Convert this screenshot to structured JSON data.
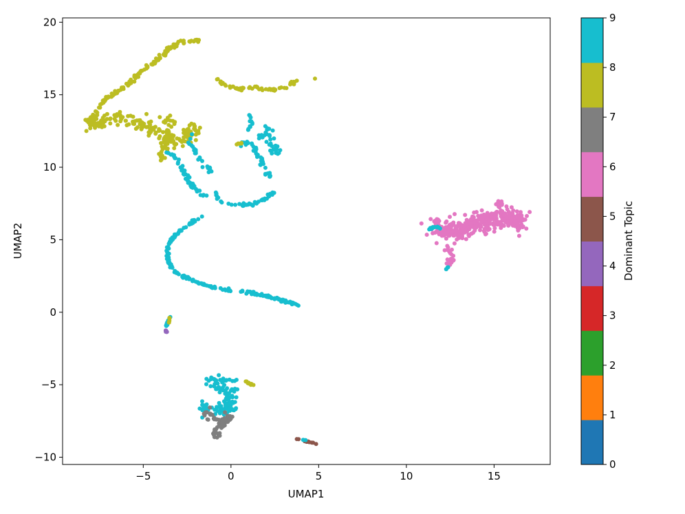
{
  "chart_data": {
    "type": "scatter",
    "xlabel": "UMAP1",
    "ylabel": "UMAP2",
    "xlim": [
      -9.6,
      18.2
    ],
    "ylim": [
      -10.5,
      20.3
    ],
    "xticks": [
      -5,
      0,
      5,
      10,
      15
    ],
    "yticks": [
      -10,
      -5,
      0,
      5,
      10,
      15,
      20
    ],
    "grid": false,
    "legend": "none",
    "colorbar": {
      "label": "Dominant Topic",
      "min": 0,
      "max": 9,
      "ticks": [
        0,
        1,
        2,
        3,
        4,
        5,
        6,
        7,
        8,
        9
      ],
      "colors": [
        "#1f77b4",
        "#ff7f0e",
        "#2ca02c",
        "#d62728",
        "#9467bd",
        "#8c564b",
        "#e377c2",
        "#7f7f7f",
        "#bcbd22",
        "#17becf"
      ]
    },
    "clusters": [
      {
        "topic": 8,
        "path": [
          [
            -8.3,
            13.1
          ],
          [
            -7.8,
            13.6
          ],
          [
            -7.3,
            14.6
          ],
          [
            -6.6,
            15.1
          ],
          [
            -5.9,
            15.7
          ],
          [
            -5.2,
            16.5
          ],
          [
            -4.4,
            17.2
          ],
          [
            -3.6,
            18.1
          ],
          [
            -2.9,
            18.6
          ],
          [
            -2.2,
            18.75
          ],
          [
            -1.8,
            18.7
          ]
        ],
        "spread": 0.12,
        "n": 130
      },
      {
        "topic": 8,
        "path": [
          [
            -8.0,
            13.0
          ],
          [
            -7.3,
            13.4
          ],
          [
            -6.4,
            13.4
          ],
          [
            -5.4,
            13.1
          ],
          [
            -4.6,
            12.8
          ],
          [
            -3.9,
            12.2
          ],
          [
            -3.2,
            11.7
          ],
          [
            -2.6,
            11.9
          ],
          [
            -2.2,
            12.6
          ],
          [
            -1.8,
            12.7
          ]
        ],
        "spread": 0.35,
        "n": 170
      },
      {
        "topic": 8,
        "path": [
          [
            -4.1,
            10.6
          ],
          [
            -3.8,
            11.2
          ],
          [
            -3.6,
            12.2
          ],
          [
            -3.5,
            12.8
          ],
          [
            -3.9,
            13.3
          ]
        ],
        "spread": 0.3,
        "n": 50
      },
      {
        "topic": 8,
        "path": [
          [
            -8.1,
            13.2
          ],
          [
            -7.6,
            12.9
          ],
          [
            -7.1,
            13.2
          ]
        ],
        "spread": 0.2,
        "n": 20
      },
      {
        "topic": 9,
        "path": [
          [
            -3.6,
            11.0
          ],
          [
            -3.0,
            10.5
          ],
          [
            -2.7,
            9.6
          ],
          [
            -2.1,
            8.6
          ],
          [
            -1.5,
            8.0
          ]
        ],
        "spread": 0.12,
        "n": 50
      },
      {
        "topic": 9,
        "path": [
          [
            -2.1,
            12.2
          ],
          [
            -2.4,
            11.6
          ],
          [
            -1.9,
            10.8
          ],
          [
            -1.6,
            10.2
          ],
          [
            -1.1,
            9.7
          ]
        ],
        "spread": 0.12,
        "n": 30
      },
      {
        "topic": 9,
        "path": [
          [
            -0.9,
            8.3
          ],
          [
            -0.6,
            7.6
          ],
          [
            0.3,
            7.4
          ],
          [
            1.1,
            7.4
          ],
          [
            1.9,
            7.8
          ],
          [
            2.4,
            8.3
          ]
        ],
        "spread": 0.1,
        "n": 45
      },
      {
        "topic": 9,
        "path": [
          [
            0.5,
            11.5
          ],
          [
            1.0,
            11.8
          ],
          [
            1.4,
            11.3
          ],
          [
            1.6,
            10.7
          ],
          [
            1.8,
            10.2
          ],
          [
            2.1,
            9.8
          ],
          [
            2.2,
            9.2
          ]
        ],
        "spread": 0.15,
        "n": 40
      },
      {
        "topic": 9,
        "path": [
          [
            1.6,
            12.0
          ],
          [
            2.1,
            12.6
          ],
          [
            2.3,
            11.6
          ],
          [
            2.5,
            11.0
          ],
          [
            2.6,
            11.5
          ]
        ],
        "spread": 0.2,
        "n": 35
      },
      {
        "topic": 9,
        "path": [
          [
            1.0,
            13.7
          ],
          [
            1.2,
            13.0
          ],
          [
            1.0,
            12.3
          ]
        ],
        "spread": 0.08,
        "n": 12
      },
      {
        "topic": 9,
        "path": [
          [
            -1.6,
            6.6
          ],
          [
            -2.1,
            6.3
          ],
          [
            -2.6,
            5.9
          ],
          [
            -3.2,
            5.3
          ],
          [
            -3.6,
            4.6
          ],
          [
            -3.6,
            3.6
          ],
          [
            -3.4,
            3.0
          ],
          [
            -2.8,
            2.5
          ],
          [
            -2.0,
            2.1
          ],
          [
            -1.0,
            1.7
          ],
          [
            0.0,
            1.5
          ],
          [
            1.0,
            1.4
          ],
          [
            2.0,
            1.1
          ],
          [
            3.0,
            0.8
          ],
          [
            3.8,
            0.5
          ]
        ],
        "spread": 0.08,
        "n": 190
      },
      {
        "topic": 8,
        "path": [
          [
            -0.8,
            16.1
          ],
          [
            -0.4,
            15.7
          ],
          [
            0.2,
            15.4
          ],
          [
            1.2,
            15.5
          ],
          [
            2.2,
            15.3
          ],
          [
            3.0,
            15.5
          ],
          [
            3.8,
            16.0
          ]
        ],
        "spread": 0.1,
        "n": 60
      },
      {
        "topic": 8,
        "path": [
          [
            4.8,
            16.1
          ]
        ],
        "spread": 0.05,
        "n": 1
      },
      {
        "topic": 8,
        "path": [
          [
            0.3,
            11.6
          ],
          [
            0.7,
            11.7
          ]
        ],
        "spread": 0.05,
        "n": 5
      },
      {
        "topic": 6,
        "path": [
          [
            11.8,
            5.9
          ],
          [
            12.6,
            5.5
          ],
          [
            13.4,
            5.8
          ],
          [
            14.2,
            6.2
          ],
          [
            15.0,
            6.5
          ],
          [
            15.8,
            6.6
          ],
          [
            16.5,
            6.0
          ]
        ],
        "spread": 0.55,
        "n": 380
      },
      {
        "topic": 6,
        "path": [
          [
            12.3,
            4.6
          ],
          [
            12.6,
            3.9
          ],
          [
            12.4,
            3.2
          ]
        ],
        "spread": 0.15,
        "n": 25
      },
      {
        "topic": 6,
        "path": [
          [
            15.3,
            7.6
          ],
          [
            15.6,
            7.3
          ]
        ],
        "spread": 0.1,
        "n": 10
      },
      {
        "topic": 9,
        "path": [
          [
            11.3,
            5.7
          ],
          [
            11.6,
            5.9
          ],
          [
            11.9,
            5.8
          ]
        ],
        "spread": 0.08,
        "n": 12
      },
      {
        "topic": 9,
        "path": [
          [
            12.2,
            2.9
          ],
          [
            12.4,
            3.1
          ]
        ],
        "spread": 0.05,
        "n": 4
      },
      {
        "topic": 9,
        "path": [
          [
            -3.45,
            -0.2
          ],
          [
            -3.6,
            -0.6
          ],
          [
            -3.7,
            -1.0
          ]
        ],
        "spread": 0.04,
        "n": 12
      },
      {
        "topic": 4,
        "path": [
          [
            -3.75,
            -1.2
          ],
          [
            -3.65,
            -1.4
          ]
        ],
        "spread": 0.04,
        "n": 6
      },
      {
        "topic": 8,
        "path": [
          [
            -3.5,
            -0.3
          ],
          [
            -3.55,
            -0.8
          ]
        ],
        "spread": 0.04,
        "n": 5
      },
      {
        "topic": 9,
        "path": [
          [
            -1.1,
            -4.5
          ],
          [
            -0.6,
            -5.2
          ],
          [
            0.2,
            -5.7
          ],
          [
            -0.3,
            -6.2
          ],
          [
            -0.8,
            -6.8
          ],
          [
            0.2,
            -6.5
          ],
          [
            -0.5,
            -7.0
          ]
        ],
        "spread": 0.35,
        "n": 90
      },
      {
        "topic": 9,
        "path": [
          [
            -1.5,
            -6.2
          ],
          [
            -1.5,
            -7.2
          ]
        ],
        "spread": 0.2,
        "n": 15
      },
      {
        "topic": 9,
        "path": [
          [
            -0.9,
            -4.7
          ],
          [
            0.0,
            -4.7
          ],
          [
            0.5,
            -4.7
          ]
        ],
        "spread": 0.06,
        "n": 10
      },
      {
        "topic": 8,
        "path": [
          [
            0.8,
            -4.8
          ],
          [
            1.2,
            -5.0
          ]
        ],
        "spread": 0.06,
        "n": 8
      },
      {
        "topic": 7,
        "path": [
          [
            -1.6,
            -6.7
          ],
          [
            -1.1,
            -7.3
          ],
          [
            -0.5,
            -7.6
          ],
          [
            0.0,
            -7.2
          ],
          [
            -0.8,
            -8.2
          ],
          [
            -0.8,
            -8.7
          ]
        ],
        "spread": 0.25,
        "n": 70
      },
      {
        "topic": 5,
        "path": [
          [
            3.7,
            -8.7
          ],
          [
            4.3,
            -8.9
          ],
          [
            4.9,
            -9.1
          ]
        ],
        "spread": 0.04,
        "n": 12
      },
      {
        "topic": 9,
        "path": [
          [
            4.1,
            -8.8
          ],
          [
            4.4,
            -8.95
          ]
        ],
        "spread": 0.03,
        "n": 3
      }
    ]
  }
}
